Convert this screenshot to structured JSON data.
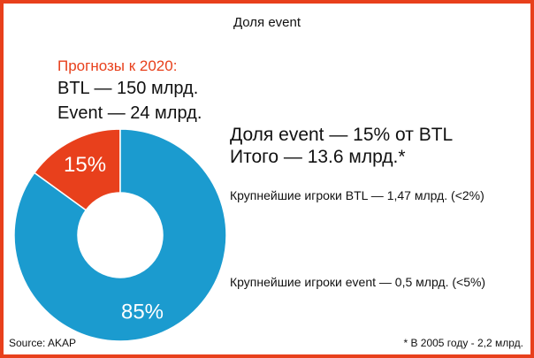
{
  "title": "Доля event",
  "colors": {
    "accent": "#e8401c",
    "series_main": "#1b9bcf",
    "series_small": "#e8401c",
    "border": "#e8401c"
  },
  "forecast": {
    "heading": "Прогнозы к 2020:",
    "btl": "BTL — 150 млрд.",
    "event": "Event — 24 млрд."
  },
  "summary": {
    "share": "Доля event — 15% от BTL",
    "total": "Итого — 13.6 млрд.*"
  },
  "players": {
    "btl": "Крупнейшие игроки  BTL — 1,47 млрд. (<2%)",
    "event": "Крупнейшие игроки event —  0,5 млрд. (<5%)"
  },
  "source": "Source: AKAP",
  "footnote": "* В 2005 году - 2,2 млрд.",
  "chart_data": {
    "type": "pie",
    "title": "Доля event",
    "donut": true,
    "slices": [
      {
        "label": "15%",
        "value": 15,
        "color": "#e8401c"
      },
      {
        "label": "85%",
        "value": 85,
        "color": "#1b9bcf"
      }
    ],
    "legend": "none"
  }
}
